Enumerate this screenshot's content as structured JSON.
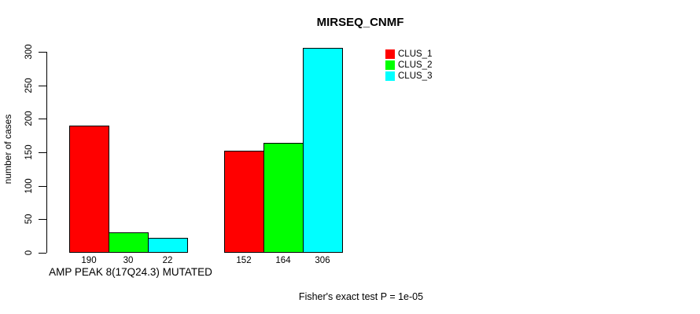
{
  "chart_data": {
    "type": "bar",
    "title": "MIRSEQ_CNMF",
    "ylabel": "number of cases",
    "xlabel": "AMP PEAK 8(17Q24.3) MUTATED",
    "footer": "Fisher's exact test P = 1e-05",
    "groups": [
      "AMP PEAK 8(17Q24.3) MUTATED",
      ""
    ],
    "series": [
      {
        "name": "CLUS_1",
        "color": "#ff0000",
        "values": [
          190,
          152
        ]
      },
      {
        "name": "CLUS_2",
        "color": "#00ff00",
        "values": [
          30,
          164
        ]
      },
      {
        "name": "CLUS_3",
        "color": "#00ffff",
        "values": [
          22,
          306
        ]
      }
    ],
    "bar_value_labels": [
      [
        "190",
        "30",
        "22"
      ],
      [
        "152",
        "164",
        "306"
      ]
    ],
    "yticks": [
      "0",
      "50",
      "100",
      "150",
      "200",
      "250",
      "300"
    ],
    "ylim": [
      0,
      300
    ],
    "grid": false,
    "legend_position": "top-right"
  },
  "legend": {
    "items": [
      {
        "label": "CLUS_1",
        "color": "#ff0000"
      },
      {
        "label": "CLUS_2",
        "color": "#00ff00"
      },
      {
        "label": "CLUS_3",
        "color": "#00ffff"
      }
    ]
  }
}
